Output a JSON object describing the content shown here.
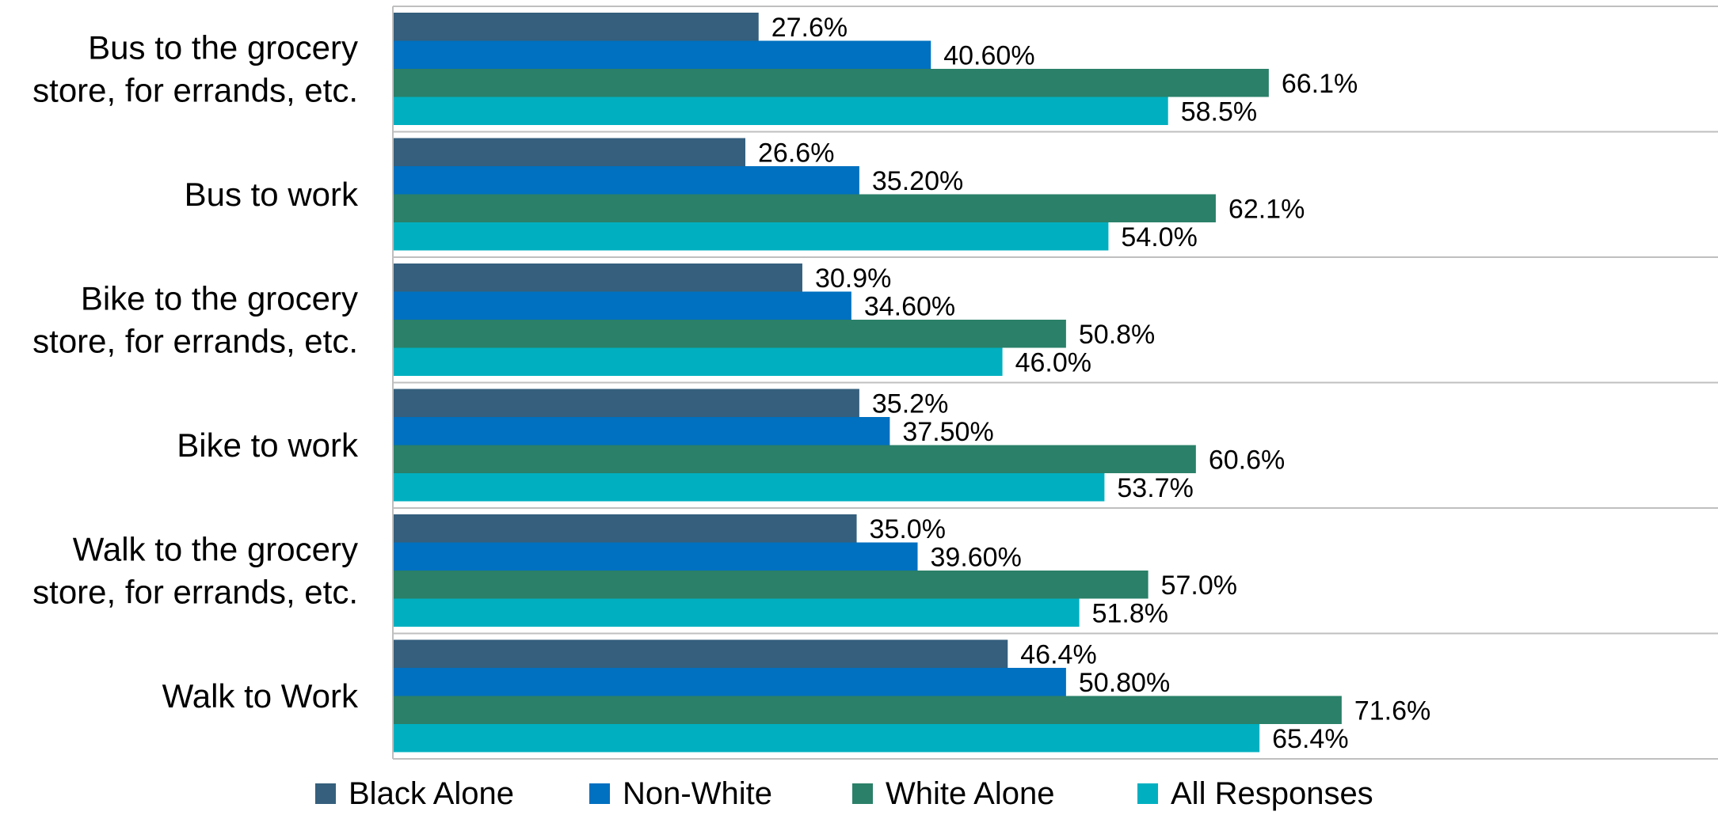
{
  "chart_data": {
    "type": "bar",
    "orientation": "horizontal",
    "categories": [
      [
        "Bus to the grocery",
        "store, for errands, etc."
      ],
      [
        "Bus to work"
      ],
      [
        "Bike to the grocery",
        "store, for errands, etc."
      ],
      [
        "Bike to work"
      ],
      [
        "Walk to the grocery",
        "store, for errands, etc."
      ],
      [
        "Walk to Work"
      ]
    ],
    "series": [
      {
        "name": "Black Alone",
        "color": "#355F7D",
        "values": [
          27.6,
          26.6,
          30.9,
          35.2,
          35.0,
          46.4
        ],
        "labels": [
          "27.6%",
          "26.6%",
          "30.9%",
          "35.2%",
          "35.0%",
          "46.4%"
        ]
      },
      {
        "name": "Non-White",
        "color": "#0070C0",
        "values": [
          40.6,
          35.2,
          34.6,
          37.5,
          39.6,
          50.8
        ],
        "labels": [
          "40.60%",
          "35.20%",
          "34.60%",
          "37.50%",
          "39.60%",
          "50.80%"
        ]
      },
      {
        "name": "White Alone",
        "color": "#2A8068",
        "values": [
          66.1,
          62.1,
          50.8,
          60.6,
          57.0,
          71.6
        ],
        "labels": [
          "66.1%",
          "62.1%",
          "50.8%",
          "60.6%",
          "57.0%",
          "71.6%"
        ]
      },
      {
        "name": "All Responses",
        "color": "#00B0C0",
        "values": [
          58.5,
          54.0,
          46.0,
          53.7,
          51.8,
          65.4
        ],
        "labels": [
          "58.5%",
          "54.0%",
          "46.0%",
          "53.7%",
          "51.8%",
          "65.4%"
        ]
      }
    ],
    "xlim": [
      0,
      100
    ],
    "grid": "horizontal category separators",
    "legend": "bottom",
    "title": "",
    "xlabel": "",
    "ylabel": ""
  }
}
